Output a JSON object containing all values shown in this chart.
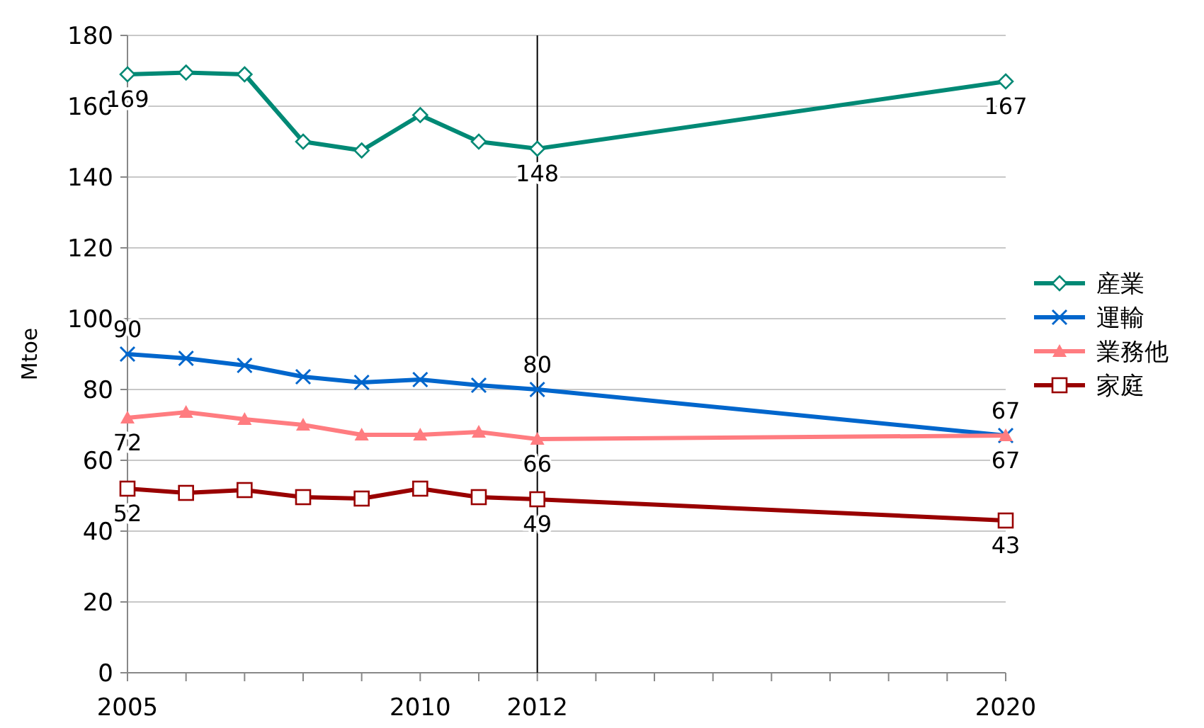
{
  "chart_data": {
    "type": "line",
    "ylabel": "Mtoe",
    "x": [
      2005,
      2006,
      2007,
      2008,
      2009,
      2010,
      2011,
      2012,
      2020
    ],
    "xlim": [
      2005,
      2020
    ],
    "xticks": [
      2005,
      {
        "value": 2006,
        "label": null
      },
      {
        "value": 2007,
        "label": null
      },
      {
        "value": 2008,
        "label": null
      },
      {
        "value": 2009,
        "label": null
      },
      2010,
      {
        "value": 2011,
        "label": null
      },
      2012,
      {
        "value": 2013,
        "label": null
      },
      {
        "value": 2014,
        "label": null
      },
      {
        "value": 2015,
        "label": null
      },
      {
        "value": 2016,
        "label": null
      },
      {
        "value": 2017,
        "label": null
      },
      {
        "value": 2018,
        "label": null
      },
      {
        "value": 2019,
        "label": null
      },
      2020
    ],
    "ylim": [
      0,
      180
    ],
    "yticks": [
      0,
      20,
      40,
      60,
      80,
      100,
      120,
      140,
      160,
      180
    ],
    "grid": "y",
    "legend": "right",
    "line_style": "solid",
    "ref_lines": [
      {
        "axis": "x",
        "value": 2012,
        "color": "#000000"
      }
    ],
    "series": [
      {
        "name": "産業",
        "color": "#008975",
        "marker": "diamond",
        "values": [
          169,
          169.5,
          169,
          150,
          147.5,
          157.5,
          150,
          148,
          167
        ],
        "value_labels": [
          "169",
          null,
          null,
          null,
          null,
          null,
          null,
          "148",
          "167"
        ]
      },
      {
        "name": "運輸",
        "color": "#0066cc",
        "marker": "cross",
        "values": [
          90,
          88.8,
          86.8,
          83.6,
          82,
          82.8,
          81.2,
          80,
          67
        ],
        "value_labels": [
          "90",
          null,
          null,
          null,
          null,
          null,
          null,
          "80",
          "67"
        ]
      },
      {
        "name": "業務他",
        "color": "#ff7c80",
        "marker": "triangle",
        "values": [
          72,
          73.6,
          71.6,
          70,
          67.2,
          67.2,
          68,
          66,
          67
        ],
        "value_labels": [
          "72",
          null,
          null,
          null,
          null,
          null,
          null,
          "66",
          "67"
        ]
      },
      {
        "name": "家庭",
        "color": "#990000",
        "marker": "square",
        "values": [
          52,
          50.8,
          51.6,
          49.6,
          49.2,
          52,
          49.6,
          49,
          43
        ],
        "value_labels": [
          "52",
          null,
          null,
          null,
          null,
          null,
          null,
          "49",
          "43"
        ]
      }
    ]
  }
}
